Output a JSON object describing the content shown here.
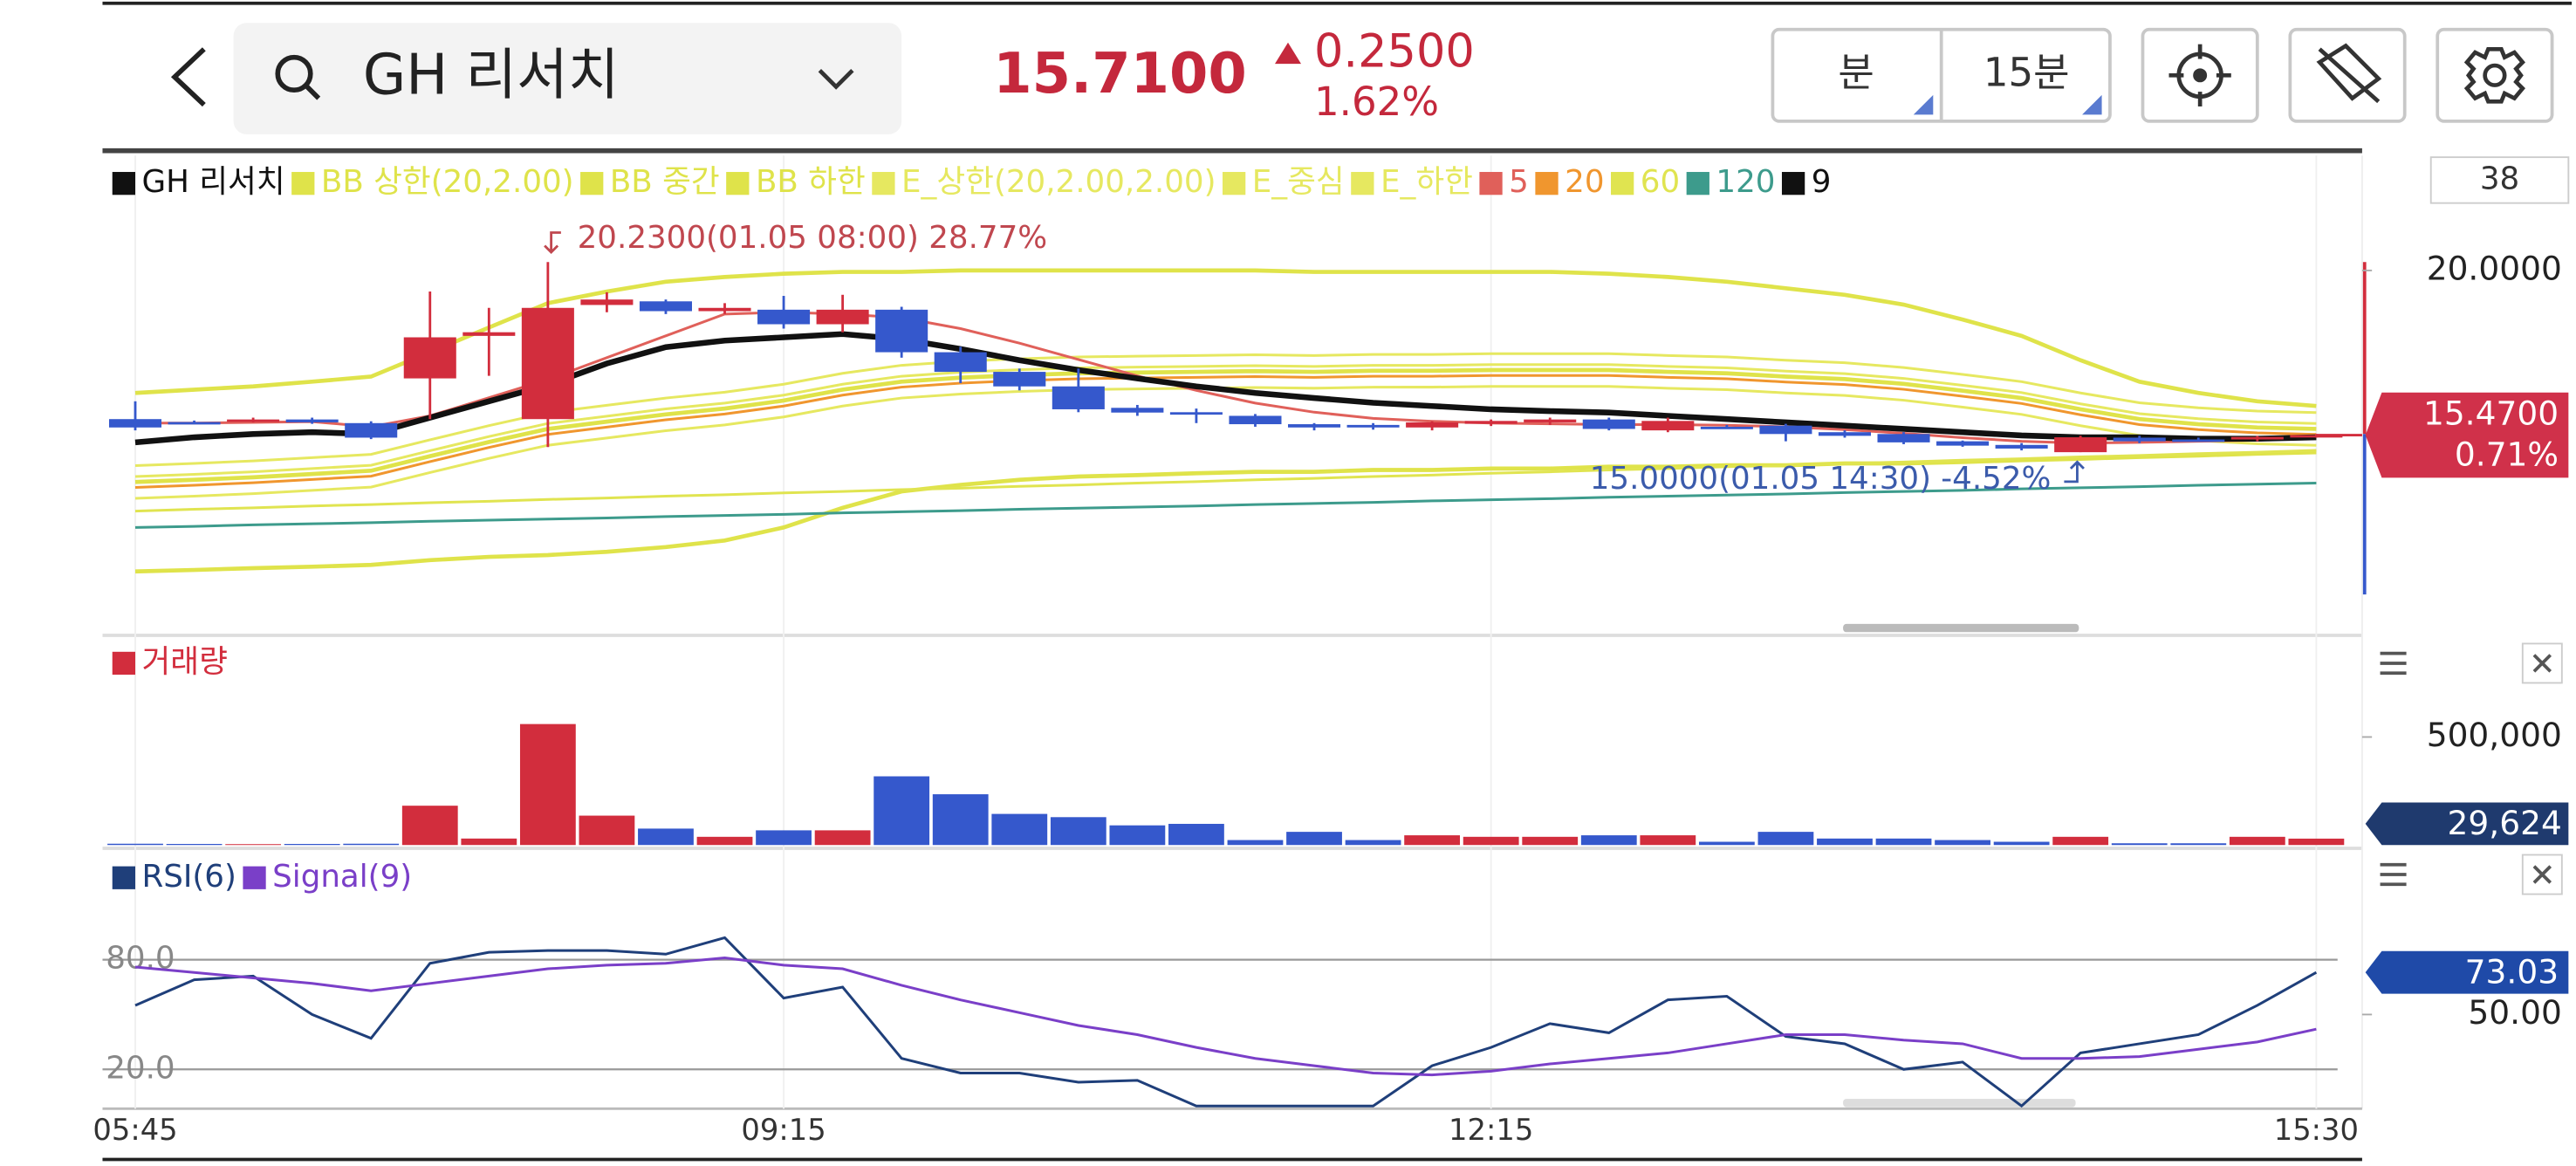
{
  "header": {
    "title": "GH 리서치",
    "price": "15.7100",
    "change": "0.2500",
    "change_pct": "1.62%",
    "buttons": [
      "분",
      "15분"
    ]
  },
  "chart_data": [
    {
      "type": "candlestick",
      "name": "GH 리서치",
      "visible_count": 38,
      "categories": [
        "05:45",
        null,
        null,
        null,
        null,
        null,
        null,
        null,
        null,
        null,
        null,
        "09:15",
        null,
        null,
        null,
        null,
        null,
        null,
        null,
        null,
        null,
        null,
        null,
        "12:15",
        null,
        null,
        null,
        null,
        null,
        null,
        null,
        null,
        null,
        null,
        null,
        null,
        null,
        "15:30"
      ],
      "open": [
        15.91,
        15.83,
        15.85,
        15.9,
        15.8,
        17.03,
        18.2,
        15.91,
        19.05,
        19.15,
        18.88,
        18.92,
        18.52,
        18.92,
        17.75,
        17.21,
        16.81,
        16.22,
        16.1,
        16.0,
        15.77,
        15.75,
        15.68,
        15.78,
        15.82,
        15.9,
        15.6,
        15.7,
        15.73,
        15.55,
        15.5,
        15.3,
        15.2,
        15.0,
        15.4,
        15.35,
        15.35,
        15.44
      ],
      "high": [
        16.4,
        15.87,
        15.95,
        15.95,
        15.85,
        19.42,
        18.97,
        20.23,
        19.4,
        19.2,
        19.1,
        19.3,
        19.33,
        19.0,
        17.9,
        17.3,
        17.3,
        16.3,
        16.2,
        16.05,
        15.8,
        15.8,
        15.85,
        15.9,
        15.95,
        15.95,
        15.95,
        15.75,
        15.78,
        15.6,
        15.55,
        15.32,
        15.25,
        15.45,
        15.45,
        15.4,
        15.45,
        15.5
      ],
      "low": [
        15.6,
        15.78,
        15.82,
        15.78,
        15.36,
        15.91,
        17.1,
        15.14,
        18.85,
        18.8,
        18.8,
        18.4,
        18.3,
        17.6,
        16.9,
        16.7,
        16.1,
        16.0,
        15.8,
        15.7,
        15.6,
        15.62,
        15.6,
        15.72,
        15.75,
        15.6,
        15.55,
        15.65,
        15.3,
        15.4,
        15.22,
        15.15,
        15.05,
        15.0,
        15.25,
        15.3,
        15.3,
        15.4
      ],
      "close": [
        15.68,
        15.8,
        15.9,
        15.82,
        15.4,
        18.16,
        18.3,
        18.97,
        19.2,
        18.88,
        18.97,
        18.52,
        18.92,
        17.75,
        17.21,
        16.81,
        16.18,
        16.09,
        16.05,
        15.77,
        15.68,
        15.68,
        15.82,
        15.86,
        15.9,
        15.64,
        15.86,
        15.68,
        15.5,
        15.45,
        15.27,
        15.18,
        15.1,
        15.41,
        15.3,
        15.33,
        15.42,
        15.47
      ],
      "up_color": "#d22d3d",
      "down_color": "#3558cc",
      "name_color": "#111111",
      "ylim": [
        10.32,
        23.16
      ],
      "right_ticks": [
        {
          "value": 20,
          "label": "20.0000"
        }
      ],
      "last_label": "15.4700",
      "last_change": "0.71%",
      "high_label": "20.2300(01.05 08:00) 28.77%",
      "low_label": "15.0000(01.05 14:30) -4.52%",
      "series": [
        {
          "name": "BB 상한(20,2.00)",
          "color": "#dfe34a",
          "values": [
            16.63,
            16.72,
            16.81,
            16.94,
            17.08,
            17.75,
            18.43,
            19.1,
            19.42,
            19.69,
            19.82,
            19.91,
            19.96,
            19.96,
            20.0,
            20.0,
            20.0,
            20.0,
            20.0,
            20.0,
            19.96,
            19.96,
            19.96,
            19.96,
            19.96,
            19.91,
            19.82,
            19.69,
            19.51,
            19.33,
            19.06,
            18.65,
            18.2,
            17.53,
            16.94,
            16.63,
            16.4,
            16.27
          ]
        },
        {
          "name": "BB 중간",
          "color": "#dfe34a",
          "values": [
            14.18,
            14.24,
            14.31,
            14.4,
            14.49,
            14.89,
            15.28,
            15.64,
            15.84,
            16.04,
            16.2,
            16.42,
            16.72,
            16.94,
            17.05,
            17.12,
            17.17,
            17.19,
            17.21,
            17.23,
            17.21,
            17.24,
            17.24,
            17.26,
            17.26,
            17.26,
            17.21,
            17.17,
            17.08,
            17.01,
            16.88,
            16.69,
            16.49,
            16.18,
            15.91,
            15.77,
            15.68,
            15.64
          ]
        },
        {
          "name": "BB 하한",
          "color": "#dfe34a",
          "values": [
            11.72,
            11.76,
            11.81,
            11.85,
            11.9,
            12.03,
            12.12,
            12.17,
            12.26,
            12.39,
            12.57,
            12.93,
            13.47,
            13.92,
            14.1,
            14.24,
            14.33,
            14.37,
            14.42,
            14.46,
            14.46,
            14.51,
            14.51,
            14.55,
            14.55,
            14.6,
            14.6,
            14.64,
            14.64,
            14.69,
            14.69,
            14.73,
            14.78,
            14.82,
            14.87,
            14.91,
            14.96,
            15.0
          ]
        },
        {
          "name": "E_상한(20,2.00,2.00)",
          "color": "#e6e860",
          "values": [
            14.63,
            14.69,
            14.76,
            14.85,
            14.94,
            15.34,
            15.73,
            16.09,
            16.29,
            16.49,
            16.65,
            16.87,
            17.17,
            17.39,
            17.5,
            17.57,
            17.62,
            17.64,
            17.66,
            17.68,
            17.66,
            17.69,
            17.69,
            17.71,
            17.71,
            17.71,
            17.66,
            17.62,
            17.53,
            17.46,
            17.33,
            17.14,
            16.94,
            16.63,
            16.36,
            16.22,
            16.13,
            16.09
          ]
        },
        {
          "name": "E_중심",
          "color": "#e6e860",
          "values": [
            14.33,
            14.39,
            14.46,
            14.55,
            14.64,
            15.04,
            15.43,
            15.79,
            15.99,
            16.19,
            16.35,
            16.57,
            16.87,
            17.09,
            17.2,
            17.27,
            17.32,
            17.34,
            17.36,
            17.38,
            17.36,
            17.39,
            17.39,
            17.41,
            17.41,
            17.41,
            17.36,
            17.32,
            17.23,
            17.16,
            17.03,
            16.84,
            16.64,
            16.33,
            16.06,
            15.92,
            15.83,
            15.79
          ]
        },
        {
          "name": "E_하한",
          "color": "#e6e860",
          "values": [
            13.73,
            13.79,
            13.86,
            13.95,
            14.04,
            14.44,
            14.83,
            15.19,
            15.39,
            15.59,
            15.75,
            15.97,
            16.27,
            16.49,
            16.6,
            16.67,
            16.72,
            16.74,
            16.76,
            16.78,
            16.76,
            16.79,
            16.79,
            16.81,
            16.81,
            16.81,
            16.76,
            16.72,
            16.63,
            16.56,
            16.43,
            16.24,
            16.04,
            15.73,
            15.46,
            15.32,
            15.23,
            15.19
          ]
        },
        {
          "name": "5",
          "color": "#e0605a",
          "values": [
            15.8,
            15.8,
            15.82,
            15.84,
            15.7,
            16.0,
            16.5,
            17.0,
            17.6,
            18.2,
            18.8,
            18.85,
            18.8,
            18.7,
            18.4,
            18.0,
            17.55,
            17.1,
            16.7,
            16.35,
            16.1,
            15.93,
            15.85,
            15.8,
            15.78,
            15.76,
            15.76,
            15.74,
            15.7,
            15.62,
            15.52,
            15.4,
            15.3,
            15.25,
            15.27,
            15.3,
            15.33,
            15.4
          ]
        },
        {
          "name": "20",
          "color": "#f0962e",
          "values": [
            14.03,
            14.09,
            14.16,
            14.25,
            14.34,
            14.74,
            15.13,
            15.49,
            15.69,
            15.89,
            16.05,
            16.27,
            16.57,
            16.79,
            16.9,
            16.97,
            17.02,
            17.04,
            17.06,
            17.08,
            17.06,
            17.09,
            17.09,
            17.11,
            17.11,
            17.11,
            17.06,
            17.02,
            16.93,
            16.86,
            16.73,
            16.54,
            16.34,
            16.03,
            15.76,
            15.62,
            15.53,
            15.49
          ]
        },
        {
          "name": "60",
          "color": "#e0e450",
          "values": [
            13.38,
            13.43,
            13.47,
            13.52,
            13.56,
            13.61,
            13.65,
            13.7,
            13.74,
            13.79,
            13.83,
            13.88,
            13.92,
            13.97,
            14.01,
            14.06,
            14.1,
            14.15,
            14.19,
            14.24,
            14.28,
            14.33,
            14.37,
            14.42,
            14.46,
            14.51,
            14.55,
            14.6,
            14.64,
            14.69,
            14.73,
            14.78,
            14.82,
            14.87,
            14.91,
            14.96,
            15.0,
            15.05
          ]
        },
        {
          "name": "120",
          "color": "#3d9b8c",
          "values": [
            12.93,
            12.96,
            13.0,
            13.03,
            13.06,
            13.1,
            13.13,
            13.16,
            13.19,
            13.23,
            13.26,
            13.29,
            13.33,
            13.36,
            13.39,
            13.43,
            13.46,
            13.49,
            13.52,
            13.56,
            13.59,
            13.62,
            13.66,
            13.69,
            13.72,
            13.76,
            13.79,
            13.82,
            13.85,
            13.89,
            13.92,
            13.95,
            13.99,
            14.02,
            14.05,
            14.09,
            14.12,
            14.15
          ]
        },
        {
          "name": "9",
          "color": "#111111",
          "values": [
            15.27,
            15.41,
            15.5,
            15.55,
            15.5,
            15.95,
            16.4,
            16.85,
            17.44,
            17.89,
            18.07,
            18.16,
            18.25,
            18.11,
            17.84,
            17.53,
            17.26,
            17.03,
            16.81,
            16.63,
            16.49,
            16.36,
            16.27,
            16.18,
            16.13,
            16.09,
            16.0,
            15.91,
            15.82,
            15.73,
            15.64,
            15.55,
            15.46,
            15.41,
            15.41,
            15.37,
            15.37,
            15.41
          ]
        }
      ]
    },
    {
      "type": "bar",
      "name": "거래량",
      "color": "#d22d3d",
      "values": [
        6000,
        5000,
        4000,
        5000,
        6000,
        182000,
        30000,
        560000,
        136000,
        76000,
        38000,
        68000,
        68000,
        318000,
        235000,
        144000,
        129000,
        91000,
        98000,
        23000,
        61000,
        23000,
        45000,
        38000,
        38000,
        45000,
        45000,
        15000,
        61000,
        30000,
        30000,
        23000,
        15000,
        38000,
        8000,
        8000,
        38000,
        29624
      ],
      "ylim": [
        0,
        940000
      ],
      "right_ticks": [
        {
          "value": 500000,
          "label": "500,000"
        }
      ],
      "last_label": "29,624"
    },
    {
      "type": "line",
      "series": [
        {
          "name": "RSI(6)",
          "color": "#1f3f7a",
          "values": [
            55,
            69,
            71,
            50,
            37,
            78,
            84,
            85,
            85,
            83,
            92,
            59,
            65,
            26,
            18,
            18,
            13,
            14,
            0,
            0,
            0,
            0,
            22,
            32,
            45,
            40,
            58,
            60,
            38,
            34,
            20,
            24,
            0,
            29,
            34,
            39,
            55,
            73.03
          ]
        },
        {
          "name": "Signal(9)",
          "color": "#7a3fc8",
          "values": [
            76,
            73,
            70,
            67,
            63,
            67,
            71,
            75,
            77,
            78,
            81,
            77,
            75,
            66,
            58,
            51,
            44,
            39,
            32,
            26,
            22,
            18,
            17,
            19,
            23,
            26,
            29,
            34,
            39,
            39,
            36,
            34,
            26,
            26,
            27,
            31,
            35,
            42
          ]
        }
      ],
      "ylim": [
        -0.6,
        139.1
      ],
      "yticks": [
        {
          "value": 80,
          "label": "80.0"
        },
        {
          "value": 20,
          "label": "20.0"
        }
      ],
      "right_ticks": [
        {
          "value": 50,
          "label": "50.00"
        }
      ],
      "last_label": "73.03"
    }
  ]
}
